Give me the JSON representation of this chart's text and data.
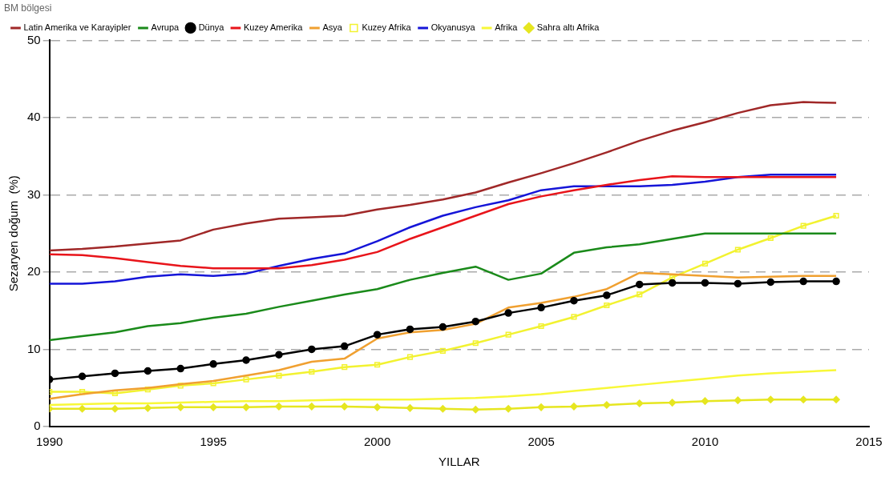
{
  "chart_data": {
    "type": "line",
    "xlabel": "YILLAR",
    "ylabel": "Sezaryen doğum  (%)",
    "legend_title": "BM bölgesi",
    "x": [
      1990,
      1991,
      1992,
      1993,
      1994,
      1995,
      1996,
      1997,
      1998,
      1999,
      2000,
      2001,
      2002,
      2003,
      2004,
      2005,
      2006,
      2007,
      2008,
      2009,
      2010,
      2011,
      2012,
      2013,
      2014
    ],
    "xlim": [
      1990,
      2015
    ],
    "xticks": [
      1990,
      1995,
      2000,
      2005,
      2010,
      2015
    ],
    "ylim": [
      0,
      50
    ],
    "yticks": [
      0,
      10,
      20,
      30,
      40,
      50
    ],
    "grid": "y",
    "legend": "top left",
    "line_style": "solid",
    "series": [
      {
        "name": "Latin Amerika ve Karayipler",
        "color": "#a02828",
        "marker": "none",
        "values": [
          22.8,
          23.0,
          23.3,
          23.7,
          24.1,
          25.5,
          26.3,
          26.9,
          27.1,
          27.3,
          28.1,
          28.7,
          29.4,
          30.3,
          31.6,
          32.8,
          34.1,
          35.5,
          37.0,
          38.3,
          39.4,
          40.6,
          41.6,
          42.0,
          41.9
        ]
      },
      {
        "name": "Avrupa",
        "color": "#1a8a1a",
        "marker": "none",
        "values": [
          11.2,
          11.7,
          12.2,
          13.0,
          13.4,
          14.1,
          14.6,
          15.5,
          16.3,
          17.1,
          17.8,
          19.0,
          19.9,
          20.7,
          19.0,
          19.8,
          22.5,
          23.2,
          23.6,
          24.3,
          25.0,
          25.0,
          25.0,
          25.0,
          25.0
        ]
      },
      {
        "name": "Dünya",
        "color": "#000000",
        "marker": "circle",
        "values": [
          6.1,
          6.5,
          6.9,
          7.2,
          7.5,
          8.1,
          8.6,
          9.3,
          10.0,
          10.4,
          11.9,
          12.6,
          12.9,
          13.6,
          14.7,
          15.4,
          16.3,
          17.0,
          18.4,
          18.6,
          18.6,
          18.5,
          18.7,
          18.8,
          18.8
        ]
      },
      {
        "name": "Kuzey Amerika",
        "color": "#e8141a",
        "marker": "none",
        "values": [
          22.3,
          22.2,
          21.8,
          21.3,
          20.8,
          20.5,
          20.5,
          20.5,
          20.9,
          21.6,
          22.6,
          24.3,
          25.8,
          27.3,
          28.8,
          29.8,
          30.6,
          31.3,
          31.9,
          32.4,
          32.3,
          32.3,
          32.3,
          32.3,
          32.3
        ]
      },
      {
        "name": "Asya",
        "color": "#f0a030",
        "marker": "none",
        "values": [
          3.6,
          4.2,
          4.7,
          5.0,
          5.5,
          5.9,
          6.6,
          7.3,
          8.4,
          8.8,
          11.4,
          12.2,
          12.5,
          13.3,
          15.4,
          16.0,
          16.8,
          17.8,
          19.9,
          19.7,
          19.5,
          19.3,
          19.4,
          19.5,
          19.5
        ]
      },
      {
        "name": "Kuzey Afrika",
        "color": "#f2f230",
        "marker": "square",
        "values": [
          4.5,
          4.5,
          4.3,
          4.8,
          5.3,
          5.6,
          6.1,
          6.6,
          7.1,
          7.7,
          8.0,
          9.0,
          9.8,
          10.8,
          11.9,
          13.0,
          14.2,
          15.7,
          17.1,
          19.3,
          21.1,
          22.9,
          24.4,
          26.0,
          27.3
        ]
      },
      {
        "name": "Okyanusya",
        "color": "#1515d8",
        "marker": "none",
        "values": [
          18.5,
          18.5,
          18.8,
          19.4,
          19.7,
          19.5,
          19.8,
          20.8,
          21.7,
          22.4,
          24.0,
          25.8,
          27.3,
          28.4,
          29.3,
          30.6,
          31.1,
          31.1,
          31.1,
          31.3,
          31.7,
          32.3,
          32.6,
          32.6,
          32.6
        ]
      },
      {
        "name": "Afrika",
        "color": "#f8f838",
        "marker": "none",
        "values": [
          2.8,
          2.9,
          3.0,
          3.0,
          3.1,
          3.2,
          3.3,
          3.3,
          3.4,
          3.5,
          3.5,
          3.5,
          3.6,
          3.7,
          3.9,
          4.2,
          4.6,
          5.0,
          5.4,
          5.8,
          6.2,
          6.6,
          6.9,
          7.1,
          7.3
        ]
      },
      {
        "name": "Sahra altı Afrika",
        "color": "#e6e620",
        "marker": "diamond",
        "values": [
          2.3,
          2.3,
          2.3,
          2.4,
          2.5,
          2.5,
          2.5,
          2.6,
          2.6,
          2.6,
          2.5,
          2.4,
          2.3,
          2.2,
          2.3,
          2.5,
          2.6,
          2.8,
          3.0,
          3.1,
          3.3,
          3.4,
          3.5,
          3.5,
          3.5
        ]
      }
    ]
  }
}
